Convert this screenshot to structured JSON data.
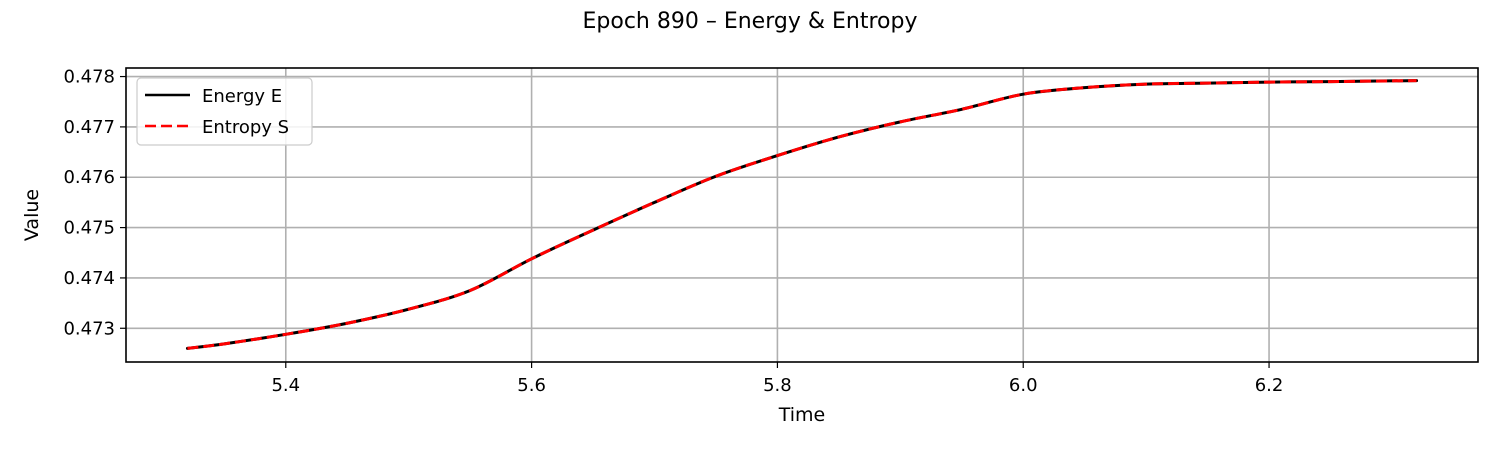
{
  "chart_data": {
    "type": "line",
    "title": "Epoch 890 – Energy & Entropy",
    "xlabel": "Time",
    "ylabel": "Value",
    "xlim": [
      5.27,
      6.37
    ],
    "ylim": [
      0.47233,
      0.47817
    ],
    "xticks": [
      5.4,
      5.6,
      5.8,
      6.0,
      6.2
    ],
    "xtick_labels": [
      "5.4",
      "5.6",
      "5.8",
      "6.0",
      "6.2"
    ],
    "yticks": [
      0.473,
      0.474,
      0.475,
      0.476,
      0.477,
      0.478
    ],
    "ytick_labels": [
      "0.473",
      "0.474",
      "0.475",
      "0.476",
      "0.477",
      "0.478"
    ],
    "grid": true,
    "legend_position": "top-left",
    "series": [
      {
        "name": "Energy E",
        "color": "#000000",
        "style": "solid",
        "x": [
          5.32,
          5.35,
          5.4,
          5.45,
          5.5,
          5.55,
          5.6,
          5.65,
          5.7,
          5.75,
          5.8,
          5.85,
          5.9,
          5.95,
          6.0,
          6.05,
          6.1,
          6.15,
          6.2,
          6.25,
          6.32
        ],
        "y": [
          0.4726,
          0.47269,
          0.47288,
          0.4731,
          0.47338,
          0.47375,
          0.47438,
          0.47495,
          0.4755,
          0.47602,
          0.47643,
          0.4768,
          0.4771,
          0.47735,
          0.47765,
          0.47778,
          0.47785,
          0.47787,
          0.47789,
          0.4779,
          0.47792
        ]
      },
      {
        "name": "Entropy S",
        "color": "#ff0000",
        "style": "dashed",
        "x": [
          5.32,
          5.35,
          5.4,
          5.45,
          5.5,
          5.55,
          5.6,
          5.65,
          5.7,
          5.75,
          5.8,
          5.85,
          5.9,
          5.95,
          6.0,
          6.05,
          6.1,
          6.15,
          6.2,
          6.25,
          6.32
        ],
        "y": [
          0.4726,
          0.47269,
          0.47288,
          0.4731,
          0.47338,
          0.47375,
          0.47438,
          0.47495,
          0.4755,
          0.47602,
          0.47643,
          0.4768,
          0.4771,
          0.47735,
          0.47765,
          0.47778,
          0.47785,
          0.47787,
          0.47789,
          0.4779,
          0.47792
        ]
      }
    ]
  }
}
